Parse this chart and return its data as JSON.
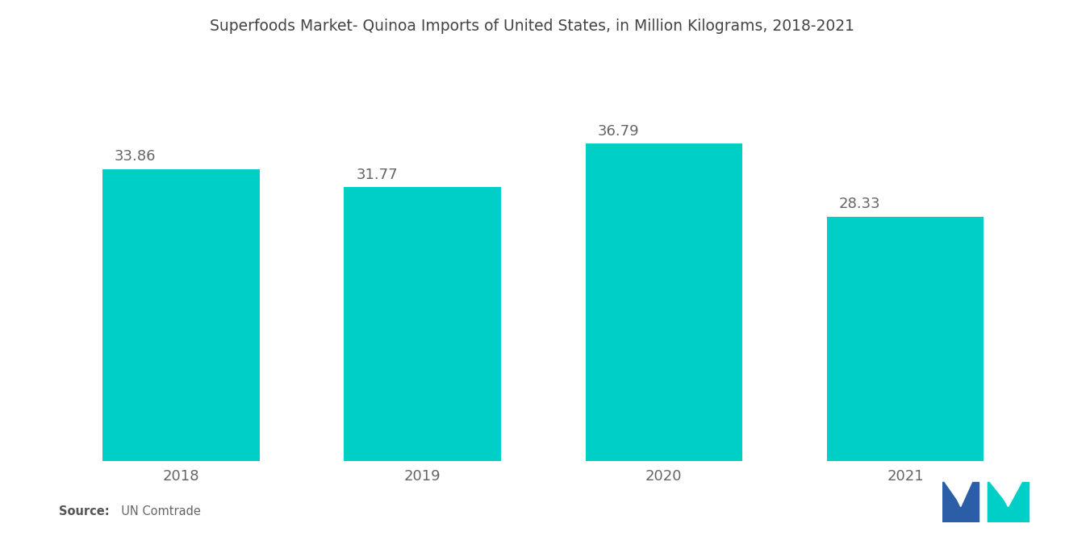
{
  "title": "Superfoods Market- Quinoa Imports of United States, in Million Kilograms, 2018-2021",
  "categories": [
    "2018",
    "2019",
    "2020",
    "2021"
  ],
  "values": [
    33.86,
    31.77,
    36.79,
    28.33
  ],
  "bar_color": "#00CFC8",
  "title_fontsize": 13.5,
  "label_fontsize": 13,
  "value_fontsize": 13,
  "source_bold": "Source:",
  "source_rest": "  UN Comtrade",
  "background_color": "#ffffff",
  "bar_width": 0.65,
  "ylim": [
    0,
    46
  ],
  "text_color": "#666666",
  "title_color": "#444444"
}
